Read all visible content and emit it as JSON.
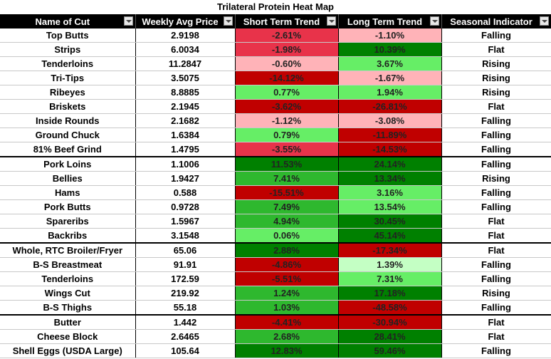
{
  "title": "Trilateral Protein Heat Map",
  "headers": [
    "Name of Cut",
    "Weekly Avg Price",
    "Short Term Trend",
    "Long Term Trend",
    "Seasonal Indicator"
  ],
  "colors": {
    "strong_red": "#c00000",
    "medium_red": "#e8334a",
    "light_red": "#ffb3b8",
    "light_green": "#66ee66",
    "pale_green": "#c4ffc4",
    "medium_green": "#2eb82e",
    "dark_green": "#008000"
  },
  "rows": [
    {
      "name": "Top Butts",
      "price": "2.9198",
      "short": "-2.61%",
      "short_color": "#e8334a",
      "long": "-1.10%",
      "long_color": "#ffb3b8",
      "seasonal": "Falling"
    },
    {
      "name": "Strips",
      "price": "6.0034",
      "short": "-1.98%",
      "short_color": "#e8334a",
      "long": "10.39%",
      "long_color": "#008000",
      "seasonal": "Flat"
    },
    {
      "name": "Tenderloins",
      "price": "11.2847",
      "short": "-0.60%",
      "short_color": "#ffb3b8",
      "long": "3.67%",
      "long_color": "#66ee66",
      "seasonal": "Rising"
    },
    {
      "name": "Tri-Tips",
      "price": "3.5075",
      "short": "-14.12%",
      "short_color": "#c00000",
      "long": "-1.67%",
      "long_color": "#ffb3b8",
      "seasonal": "Rising"
    },
    {
      "name": "Ribeyes",
      "price": "8.8885",
      "short": "0.77%",
      "short_color": "#66ee66",
      "long": "1.94%",
      "long_color": "#66ee66",
      "seasonal": "Rising"
    },
    {
      "name": "Briskets",
      "price": "2.1945",
      "short": "-3.62%",
      "short_color": "#c00000",
      "long": "-26.81%",
      "long_color": "#c00000",
      "seasonal": "Flat"
    },
    {
      "name": "Inside Rounds",
      "price": "2.1682",
      "short": "-1.12%",
      "short_color": "#ffb3b8",
      "long": "-3.08%",
      "long_color": "#ffb3b8",
      "seasonal": "Falling"
    },
    {
      "name": "Ground Chuck",
      "price": "1.6384",
      "short": "0.79%",
      "short_color": "#66ee66",
      "long": "-11.89%",
      "long_color": "#c00000",
      "seasonal": "Falling"
    },
    {
      "name": "81% Beef Grind",
      "price": "1.4795",
      "short": "-3.55%",
      "short_color": "#e8334a",
      "long": "-14.53%",
      "long_color": "#c00000",
      "seasonal": "Falling"
    },
    {
      "name": "Pork Loins",
      "price": "1.1006",
      "short": "11.53%",
      "short_color": "#008000",
      "long": "24.14%",
      "long_color": "#008000",
      "seasonal": "Falling",
      "sep": true
    },
    {
      "name": "Bellies",
      "price": "1.9427",
      "short": "7.41%",
      "short_color": "#2eb82e",
      "long": "13.34%",
      "long_color": "#008000",
      "seasonal": "Rising"
    },
    {
      "name": "Hams",
      "price": "0.588",
      "short": "-15.51%",
      "short_color": "#c00000",
      "long": "3.16%",
      "long_color": "#66ee66",
      "seasonal": "Falling"
    },
    {
      "name": "Pork Butts",
      "price": "0.9728",
      "short": "7.49%",
      "short_color": "#2eb82e",
      "long": "13.54%",
      "long_color": "#66ee66",
      "seasonal": "Falling"
    },
    {
      "name": "Spareribs",
      "price": "1.5967",
      "short": "4.94%",
      "short_color": "#2eb82e",
      "long": "30.45%",
      "long_color": "#008000",
      "seasonal": "Flat"
    },
    {
      "name": "Backribs",
      "price": "3.1548",
      "short": "0.06%",
      "short_color": "#66ee66",
      "long": "45.14%",
      "long_color": "#008000",
      "seasonal": "Flat"
    },
    {
      "name": "Whole, RTC Broiler/Fryer",
      "price": "65.06",
      "short": "2.88%",
      "short_color": "#008000",
      "long": "-17.34%",
      "long_color": "#c00000",
      "seasonal": "Flat",
      "sep": true
    },
    {
      "name": "B-S Breastmeat",
      "price": "91.91",
      "short": "-4.86%",
      "short_color": "#c00000",
      "long": "1.39%",
      "long_color": "#c4ffc4",
      "seasonal": "Falling"
    },
    {
      "name": "Tenderloins",
      "price": "172.59",
      "short": "-5.51%",
      "short_color": "#c00000",
      "long": "7.31%",
      "long_color": "#66ee66",
      "seasonal": "Falling"
    },
    {
      "name": "Wings Cut",
      "price": "219.92",
      "short": "1.24%",
      "short_color": "#2eb82e",
      "long": "17.18%",
      "long_color": "#008000",
      "seasonal": "Rising"
    },
    {
      "name": "B-S Thighs",
      "price": "55.18",
      "short": "1.03%",
      "short_color": "#2eb82e",
      "long": "-48.58%",
      "long_color": "#c00000",
      "seasonal": "Falling"
    },
    {
      "name": "Butter",
      "price": "1.442",
      "short": "-4.41%",
      "short_color": "#c00000",
      "long": "-30.94%",
      "long_color": "#c00000",
      "seasonal": "Flat",
      "sep": true
    },
    {
      "name": "Cheese Block",
      "price": "2.6465",
      "short": "2.68%",
      "short_color": "#2eb82e",
      "long": "28.41%",
      "long_color": "#008000",
      "seasonal": "Flat"
    },
    {
      "name": "Shell Eggs (USDA Large)",
      "price": "105.64",
      "short": "12.83%",
      "short_color": "#008000",
      "long": "59.46%",
      "long_color": "#008000",
      "seasonal": "Falling"
    }
  ]
}
